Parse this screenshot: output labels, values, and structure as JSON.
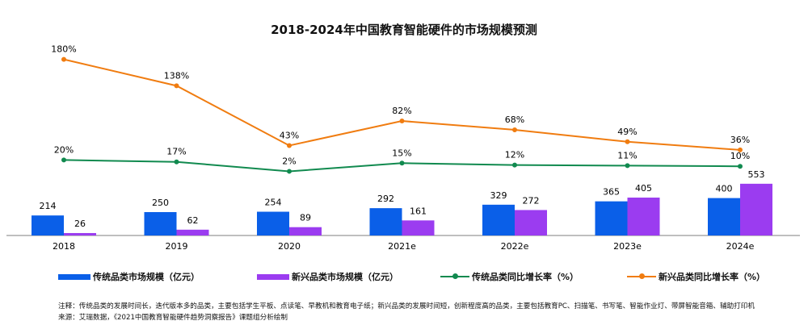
{
  "chart_data": {
    "type": "bar+line",
    "title": "2018-2024年中国教育智能硬件的市场规模预测",
    "categories": [
      "2018",
      "2019",
      "2020",
      "2021e",
      "2022e",
      "2023e",
      "2024e"
    ],
    "bar_series": [
      {
        "name": "传统品类市场规模（亿元）",
        "color": "#0a5fe8",
        "values": [
          214,
          250,
          254,
          292,
          329,
          365,
          400
        ]
      },
      {
        "name": "新兴品类市场规模（亿元）",
        "color": "#9b3cf0",
        "values": [
          26,
          62,
          89,
          161,
          272,
          405,
          553
        ]
      }
    ],
    "line_series": [
      {
        "name": "传统品类同比增长率（%）",
        "color": "#118a4f",
        "values": [
          20,
          17,
          2,
          15,
          12,
          11,
          10
        ]
      },
      {
        "name": "新兴品类同比增长率（%）",
        "color": "#f07c10",
        "values": [
          180,
          138,
          43,
          82,
          68,
          49,
          36
        ]
      }
    ],
    "grid": false,
    "legend_position": "bottom"
  },
  "notes": {
    "note": "注释：传统品类的发展时间长，迭代版本多的品类，主要包括学生平板、点读笔、早教机和教育电子纸；新兴品类的发展时间短，创新程度高的品类，主要包括教育PC、扫描笔、书写笔、智能作业灯、带屏智能音箱、辅助打印机",
    "source": "来源：艾瑞数据，《2021中国教育智能硬件趋势洞察报告》课题组分析绘制"
  }
}
